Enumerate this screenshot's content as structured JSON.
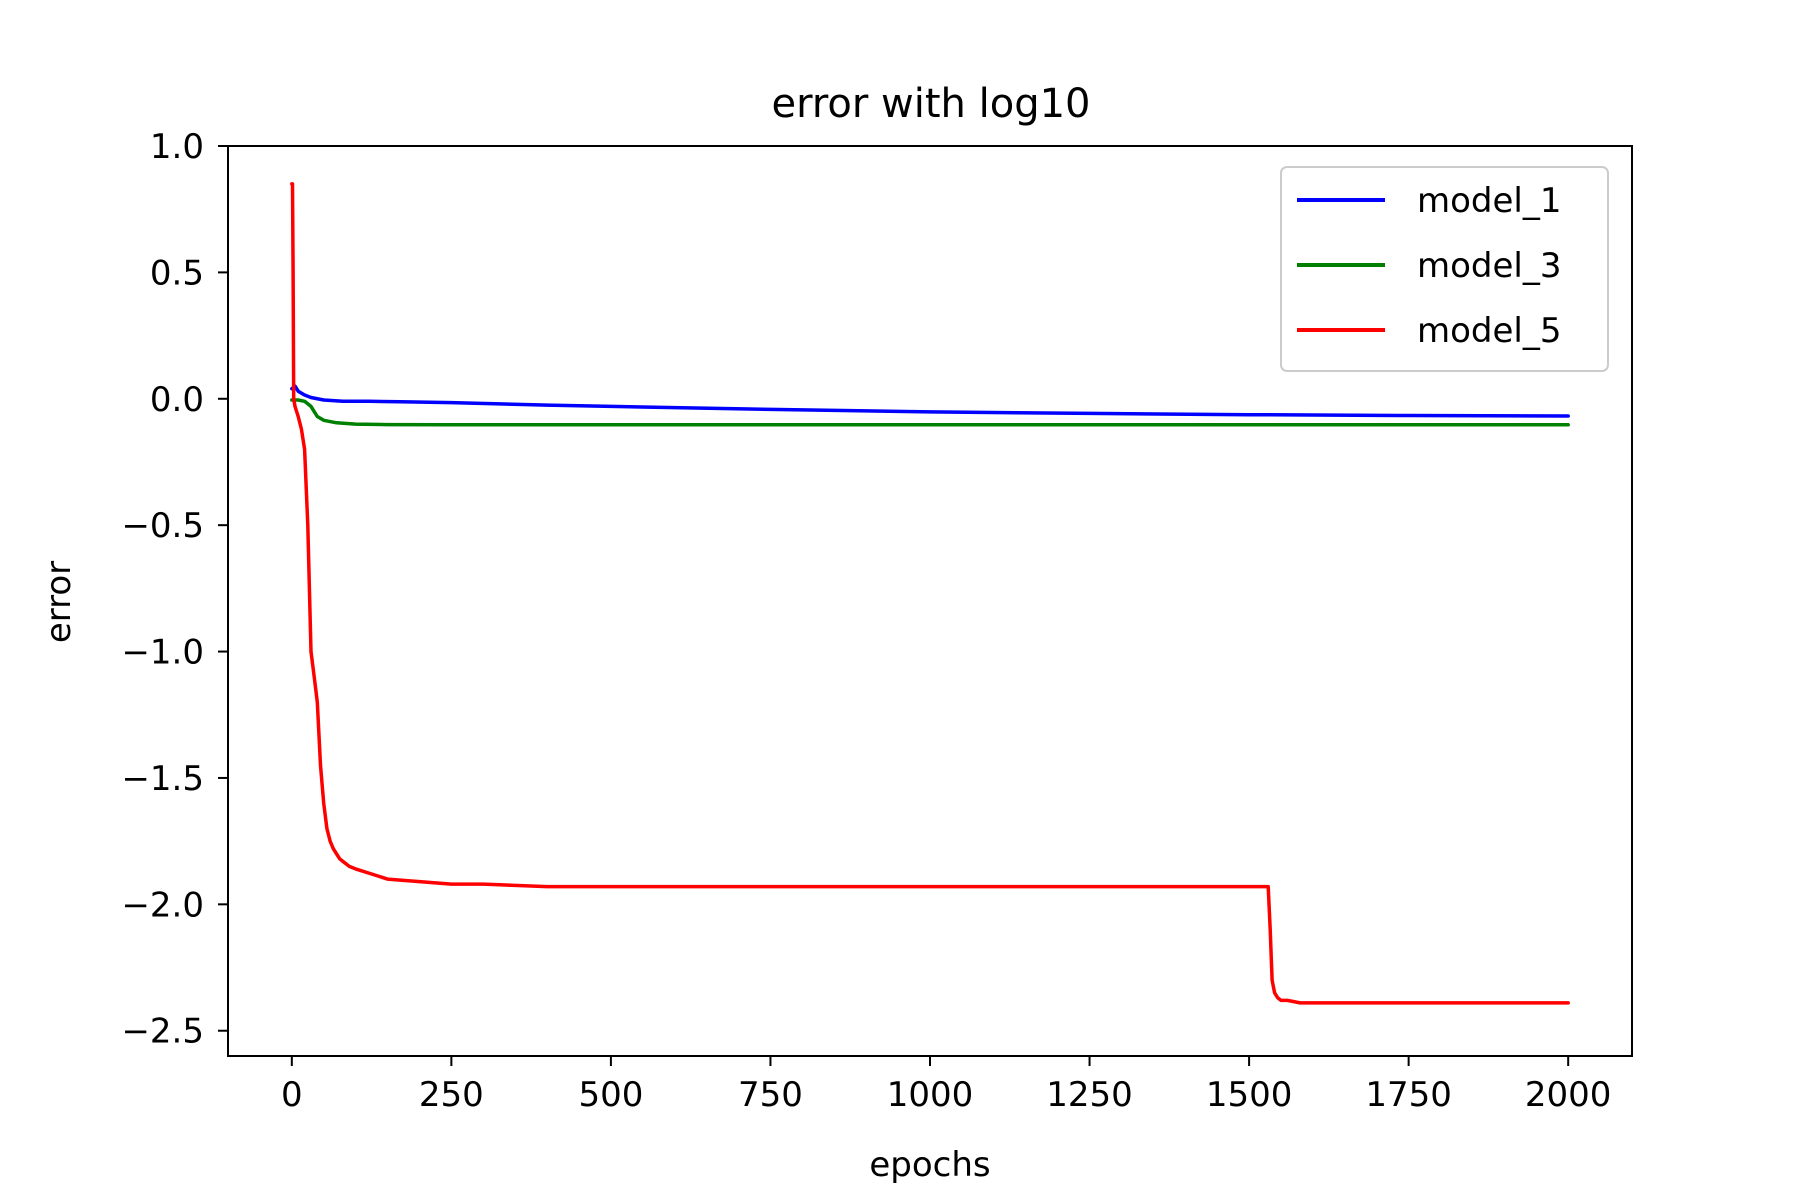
{
  "chart_data": {
    "type": "line",
    "title": "error with log10",
    "xlabel": "epochs",
    "ylabel": "error",
    "xlim": [
      -100,
      2100
    ],
    "ylim": [
      -2.6,
      1.0
    ],
    "xticks": [
      0,
      250,
      500,
      750,
      1000,
      1250,
      1500,
      1750,
      2000
    ],
    "xtick_labels": [
      "0",
      "250",
      "500",
      "750",
      "1000",
      "1250",
      "1500",
      "1750",
      "2000"
    ],
    "yticks": [
      1.0,
      0.5,
      0.0,
      -0.5,
      -1.0,
      -1.5,
      -2.0,
      -2.5
    ],
    "ytick_labels": [
      "1.0",
      "0.5",
      "0.0",
      "−0.5",
      "−1.0",
      "−1.5",
      "−2.0",
      "−2.5"
    ],
    "grid": false,
    "legend_position": "top-right",
    "series": [
      {
        "name": "model_1",
        "color": "#0000ff",
        "x": [
          0,
          5,
          10,
          20,
          30,
          50,
          80,
          120,
          170,
          250,
          400,
          500,
          600,
          750,
          900,
          1000,
          1250,
          1500,
          1750,
          2000
        ],
        "y": [
          0.04,
          0.05,
          0.03,
          0.015,
          0.005,
          -0.005,
          -0.01,
          -0.01,
          -0.012,
          -0.015,
          -0.025,
          -0.03,
          -0.035,
          -0.042,
          -0.048,
          -0.052,
          -0.058,
          -0.063,
          -0.066,
          -0.068
        ]
      },
      {
        "name": "model_3",
        "color": "#008000",
        "x": [
          0,
          10,
          20,
          30,
          40,
          50,
          70,
          100,
          150,
          250,
          500,
          1000,
          1500,
          2000
        ],
        "y": [
          -0.005,
          -0.005,
          -0.01,
          -0.03,
          -0.07,
          -0.085,
          -0.095,
          -0.1,
          -0.102,
          -0.103,
          -0.103,
          -0.103,
          -0.103,
          -0.103
        ]
      },
      {
        "name": "model_5",
        "color": "#ff0000",
        "x": [
          0,
          1,
          2,
          3,
          5,
          10,
          15,
          20,
          25,
          30,
          35,
          40,
          45,
          50,
          55,
          60,
          65,
          70,
          75,
          80,
          90,
          100,
          125,
          150,
          200,
          250,
          300,
          400,
          500,
          750,
          1000,
          1250,
          1500,
          1520,
          1530,
          1533,
          1536,
          1540,
          1545,
          1550,
          1560,
          1580,
          1600,
          1700,
          1800,
          1900,
          2000
        ],
        "y": [
          0.85,
          0.85,
          0.5,
          0.0,
          -0.03,
          -0.07,
          -0.12,
          -0.2,
          -0.5,
          -1.0,
          -1.1,
          -1.2,
          -1.45,
          -1.6,
          -1.7,
          -1.75,
          -1.78,
          -1.8,
          -1.82,
          -1.83,
          -1.85,
          -1.86,
          -1.88,
          -1.9,
          -1.91,
          -1.92,
          -1.92,
          -1.93,
          -1.93,
          -1.93,
          -1.93,
          -1.93,
          -1.93,
          -1.93,
          -1.93,
          -2.1,
          -2.3,
          -2.35,
          -2.37,
          -2.38,
          -2.38,
          -2.39,
          -2.39,
          -2.39,
          -2.39,
          -2.39,
          -2.39
        ]
      }
    ]
  }
}
